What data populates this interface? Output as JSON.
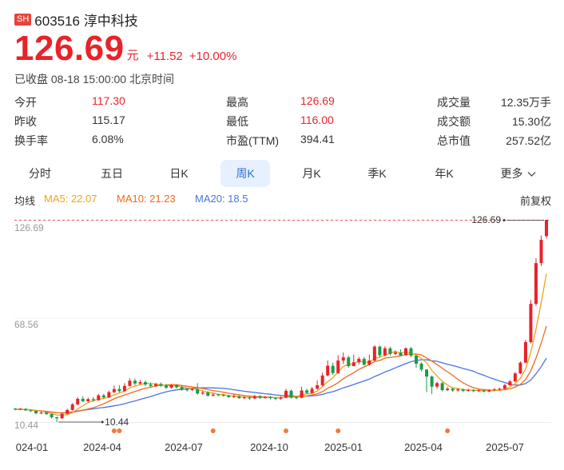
{
  "stock": {
    "exchange": "SH",
    "title": "603516 淳中科技",
    "price": "126.69",
    "unit": "元",
    "change": "+11.52",
    "change_pct": "+10.00%",
    "status": "已收盘 08-18 15:00:00 北京时间"
  },
  "stats": {
    "open_label": "今开",
    "open": "117.30",
    "prev_close_label": "昨收",
    "prev_close": "115.17",
    "turnover_label": "换手率",
    "turnover": "6.08%",
    "high_label": "最高",
    "high": "126.69",
    "low_label": "最低",
    "low": "116.00",
    "pe_label": "市盈(TTM)",
    "pe": "394.41",
    "volume_label": "成交量",
    "volume": "12.35万手",
    "amount_label": "成交额",
    "amount": "15.30亿",
    "mktcap_label": "总市值",
    "mktcap": "257.52亿"
  },
  "tabs": [
    "分时",
    "五日",
    "日K",
    "周K",
    "月K",
    "季K",
    "年K",
    "更多"
  ],
  "active_tab": "周K",
  "ma": {
    "label": "均线",
    "ma5": "MA5: 22.07",
    "ma10": "MA10: 21.23",
    "ma20": "MA20: 18.5",
    "adjust": "前复权"
  },
  "colors": {
    "up": "#e8232a",
    "down": "#1a9b47",
    "ma5": "#f0a31a",
    "ma10": "#ef6a1f",
    "ma20": "#4a73e0",
    "active_tab_bg": "#e6f0ff",
    "active_tab_text": "#2d6fd8"
  },
  "chart_data": {
    "type": "candlestick",
    "y_ticks": [
      "126.69",
      "68.56",
      "10.44"
    ],
    "ylim": [
      10.44,
      126.69
    ],
    "max_label": "126.69",
    "min_label": "10.44",
    "x_ticks": [
      "024-01",
      "2024-04",
      "2024-07",
      "2024-10",
      "2025-01",
      "2025-04",
      "2025-07"
    ],
    "candles": [
      [
        18.2,
        17.7,
        18.4,
        17.2
      ],
      [
        17.7,
        18.0,
        18.5,
        17.4
      ],
      [
        18.0,
        17.2,
        18.4,
        16.8
      ],
      [
        17.2,
        16.9,
        17.6,
        16.2
      ],
      [
        16.9,
        15.5,
        17.1,
        14.8
      ],
      [
        15.5,
        15.9,
        16.6,
        14.9
      ],
      [
        15.9,
        15.0,
        16.3,
        14.6
      ],
      [
        15.0,
        13.2,
        15.3,
        12.4
      ],
      [
        13.2,
        12.6,
        13.6,
        10.44
      ],
      [
        12.6,
        15.2,
        15.6,
        12.3
      ],
      [
        15.2,
        17.4,
        18.1,
        14.8
      ],
      [
        17.4,
        20.6,
        21.4,
        17.0
      ],
      [
        20.6,
        23.8,
        24.7,
        20.1
      ],
      [
        23.8,
        22.4,
        25.2,
        21.8
      ],
      [
        22.4,
        23.6,
        24.4,
        21.6
      ],
      [
        23.6,
        23.0,
        24.8,
        22.1
      ],
      [
        23.0,
        25.8,
        26.5,
        22.6
      ],
      [
        25.8,
        24.6,
        26.6,
        23.9
      ],
      [
        24.6,
        27.6,
        28.5,
        24.2
      ],
      [
        27.6,
        29.4,
        31.4,
        27.1
      ],
      [
        29.4,
        28.2,
        31.6,
        27.4
      ],
      [
        28.2,
        31.2,
        32.8,
        27.9
      ],
      [
        31.2,
        34.2,
        35.6,
        30.8
      ],
      [
        34.2,
        32.6,
        35.4,
        31.6
      ],
      [
        32.6,
        33.4,
        34.6,
        31.8
      ],
      [
        33.4,
        32.0,
        34.4,
        31.2
      ],
      [
        32.0,
        31.2,
        33.2,
        30.4
      ],
      [
        31.2,
        32.2,
        33.0,
        30.6
      ],
      [
        32.2,
        31.4,
        33.2,
        30.6
      ],
      [
        31.4,
        30.2,
        32.4,
        29.4
      ],
      [
        30.2,
        31.6,
        32.3,
        29.6
      ],
      [
        31.6,
        30.4,
        32.2,
        29.8
      ],
      [
        30.4,
        29.2,
        31.2,
        28.4
      ],
      [
        29.2,
        28.8,
        29.8,
        27.9
      ],
      [
        28.8,
        29.4,
        30.2,
        28.2
      ],
      [
        29.4,
        26.8,
        32.8,
        26.2
      ],
      [
        26.8,
        27.4,
        28.6,
        26.1
      ],
      [
        27.4,
        25.6,
        28.2,
        25.0
      ],
      [
        25.6,
        26.2,
        27.1,
        25.2
      ],
      [
        26.2,
        26.0,
        26.8,
        25.3
      ],
      [
        26.0,
        25.6,
        26.6,
        25.0
      ],
      [
        25.6,
        24.8,
        26.1,
        24.3
      ],
      [
        24.8,
        25.2,
        26.4,
        24.4
      ],
      [
        25.2,
        24.2,
        25.8,
        23.8
      ],
      [
        24.2,
        24.6,
        25.3,
        23.6
      ],
      [
        24.6,
        24.0,
        25.2,
        23.2
      ],
      [
        24.0,
        25.3,
        26.0,
        23.6
      ],
      [
        25.3,
        24.4,
        25.9,
        23.7
      ],
      [
        24.4,
        24.8,
        25.4,
        23.8
      ],
      [
        24.8,
        24.2,
        25.4,
        23.4
      ],
      [
        24.2,
        23.8,
        24.8,
        23.0
      ],
      [
        23.8,
        24.4,
        25.2,
        23.3
      ],
      [
        24.4,
        28.4,
        29.6,
        24.1
      ],
      [
        28.4,
        24.6,
        29.2,
        23.9
      ],
      [
        24.6,
        24.4,
        25.4,
        23.6
      ],
      [
        24.4,
        28.6,
        30.8,
        24.1
      ],
      [
        28.6,
        27.2,
        29.6,
        26.6
      ],
      [
        27.2,
        29.6,
        30.6,
        26.8
      ],
      [
        29.6,
        31.6,
        34.4,
        29.0
      ],
      [
        31.6,
        37.2,
        38.8,
        30.8
      ],
      [
        37.2,
        42.8,
        45.8,
        36.8
      ],
      [
        42.8,
        38.6,
        44.6,
        37.4
      ],
      [
        38.6,
        45.8,
        48.8,
        38.2
      ],
      [
        45.8,
        47.6,
        50.4,
        43.8
      ],
      [
        47.6,
        42.6,
        48.6,
        41.6
      ],
      [
        42.6,
        44.8,
        49.2,
        42.4
      ],
      [
        44.8,
        46.8,
        47.9,
        43.6
      ],
      [
        46.8,
        43.4,
        47.8,
        42.8
      ],
      [
        43.4,
        45.8,
        49.2,
        43.0
      ],
      [
        45.8,
        53.8,
        54.6,
        45.2
      ],
      [
        53.8,
        48.8,
        54.4,
        47.6
      ],
      [
        48.8,
        52.8,
        54.0,
        48.2
      ],
      [
        52.8,
        49.6,
        53.8,
        48.6
      ],
      [
        49.6,
        50.4,
        51.6,
        48.8
      ],
      [
        50.4,
        48.8,
        52.2,
        48.2
      ],
      [
        48.8,
        52.8,
        53.4,
        48.6
      ],
      [
        52.8,
        48.6,
        53.6,
        47.8
      ],
      [
        48.6,
        44.0,
        48.9,
        41.6
      ],
      [
        44.0,
        40.6,
        44.8,
        39.6
      ],
      [
        40.6,
        36.6,
        40.9,
        27.6
      ],
      [
        36.6,
        30.8,
        37.2,
        26.6
      ],
      [
        30.8,
        32.8,
        33.8,
        29.6
      ],
      [
        32.8,
        28.8,
        33.4,
        28.0
      ],
      [
        28.8,
        29.6,
        30.6,
        28.3
      ],
      [
        29.6,
        28.6,
        30.2,
        27.8
      ],
      [
        28.6,
        29.2,
        29.8,
        27.9
      ],
      [
        29.2,
        28.4,
        29.8,
        27.6
      ],
      [
        28.4,
        28.8,
        29.6,
        27.9
      ],
      [
        28.8,
        28.2,
        29.4,
        27.6
      ],
      [
        28.2,
        28.6,
        29.2,
        27.8
      ],
      [
        28.6,
        28.0,
        29.0,
        27.4
      ],
      [
        28.0,
        28.8,
        29.4,
        27.6
      ],
      [
        28.8,
        29.2,
        30.0,
        28.2
      ],
      [
        29.2,
        29.6,
        30.2,
        28.6
      ],
      [
        29.6,
        31.6,
        32.4,
        29.2
      ],
      [
        31.6,
        33.8,
        34.6,
        31.2
      ],
      [
        33.8,
        38.4,
        39.2,
        33.4
      ],
      [
        38.4,
        44.6,
        45.4,
        38.0
      ],
      [
        44.6,
        56.4,
        57.6,
        44.2
      ],
      [
        56.4,
        78.4,
        80.6,
        55.6
      ],
      [
        78.4,
        101.8,
        104.6,
        77.2
      ],
      [
        101.8,
        115.17,
        117.6,
        100.2
      ],
      [
        117.3,
        126.69,
        126.69,
        116.0
      ]
    ],
    "marker_weeks": [
      19,
      20,
      38,
      52,
      62,
      83
    ]
  }
}
